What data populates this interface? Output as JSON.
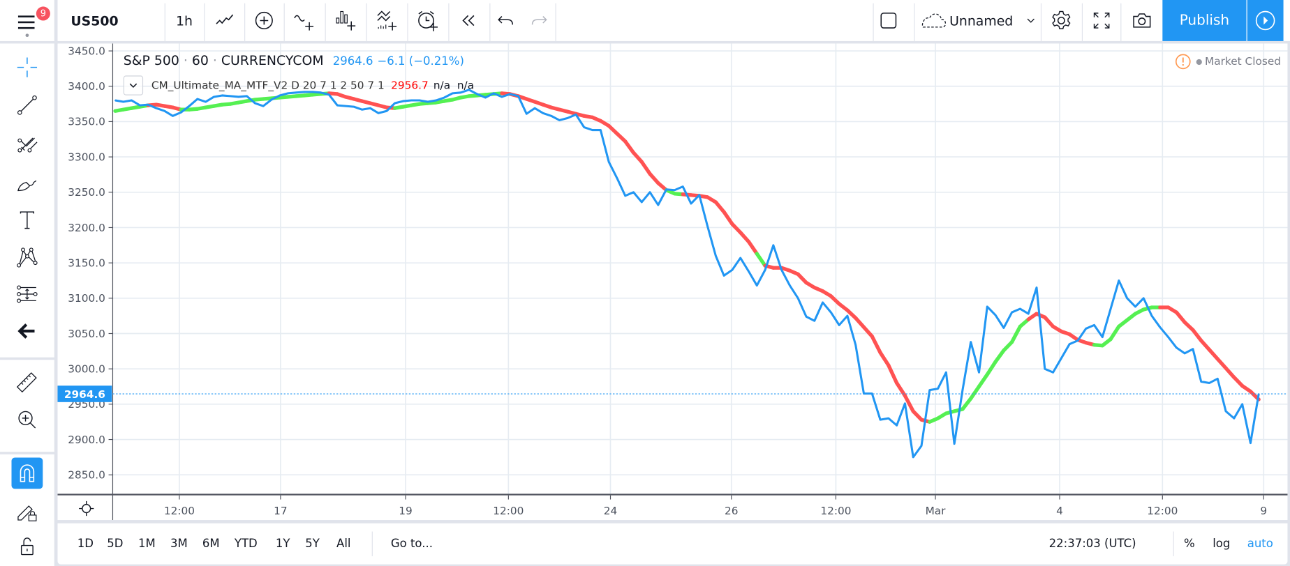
{
  "menu": {
    "badge_count": "9"
  },
  "toolbar": {
    "symbol": "US500",
    "interval": "1h",
    "icons": [
      "chart-style-line-icon",
      "compare-add-icon",
      "indicators-icon",
      "financials-icon",
      "templates-icon",
      "alert-icon",
      "replay-icon",
      "undo-icon",
      "redo-icon"
    ],
    "layout_name": "Unnamed",
    "publish_label": "Publish"
  },
  "sidebar": {
    "tools": [
      "crosshair-icon",
      "trend-line-icon",
      "pitchfork-icon",
      "brush-icon",
      "text-icon",
      "pattern-icon",
      "prediction-measure-icon",
      "back-arrow-icon",
      "ruler-icon",
      "zoom-in-icon",
      "magnet-icon",
      "lock-drawing-icon",
      "unlock-icon"
    ],
    "active": "magnet-icon"
  },
  "legend": {
    "symbol_name": "S&P 500",
    "interval": "60",
    "exchange": "CURRENCYCOM",
    "separator": "·",
    "last": "2964.6",
    "change": "−6.1 (−0.21%)",
    "indicator_name": "CM_Ultimate_MA_MTF_V2 D 20 7 1 2 50 7 1",
    "indicator_value": "2956.7",
    "indicator_na": "n/a  n/a"
  },
  "market_status": "Market Closed",
  "colors": {
    "price": "#2196f3",
    "ma_up": "#55f052",
    "ma_down": "#ff5252",
    "accent": "#2196f3",
    "indicator_value": "#ff0000"
  },
  "chart_data": {
    "type": "line",
    "y_ticks": [
      "3450.0",
      "3400.0",
      "3350.0",
      "3300.0",
      "3250.0",
      "3200.0",
      "3150.0",
      "3100.0",
      "3050.0",
      "3000.0",
      "2950.0",
      "2900.0",
      "2850.0"
    ],
    "ylim": [
      2820,
      3462
    ],
    "x_ticks": [
      "12:00",
      "17",
      "19",
      "12:00",
      "24",
      "26",
      "12:00",
      "Mar",
      "4",
      "12:00",
      "9"
    ],
    "current_price_label": "2964.6",
    "current_price": 2964.6,
    "series": [
      {
        "name": "S&P 500",
        "color": "#2196f3",
        "values": [
          3380,
          3378,
          3380,
          3373,
          3374,
          3369,
          3365,
          3358,
          3363,
          3372,
          3382,
          3378,
          3385,
          3387,
          3386,
          3385,
          3386,
          3376,
          3372,
          3381,
          3387,
          3390,
          3391,
          3392,
          3392,
          3391,
          3388,
          3373,
          3372,
          3371,
          3367,
          3369,
          3362,
          3365,
          3376,
          3379,
          3380,
          3380,
          3378,
          3380,
          3384,
          3390,
          3391,
          3395,
          3389,
          3384,
          3390,
          3385,
          3389,
          3386,
          3361,
          3369,
          3362,
          3358,
          3352,
          3355,
          3360,
          3342,
          3338,
          3338,
          3293,
          3270,
          3245,
          3250,
          3236,
          3250,
          3232,
          3254,
          3253,
          3258,
          3234,
          3246,
          3202,
          3160,
          3132,
          3140,
          3157,
          3138,
          3118,
          3140,
          3175,
          3140,
          3118,
          3100,
          3074,
          3068,
          3094,
          3080,
          3062,
          3075,
          3034,
          2965,
          2965,
          2928,
          2930,
          2920,
          2951,
          2875,
          2891,
          2970,
          2972,
          2995,
          2894,
          2970,
          3038,
          2995,
          3088,
          3076,
          3058,
          3080,
          3085,
          3078,
          3115,
          3000,
          2995,
          3015,
          3035,
          3040,
          3057,
          3062,
          3045,
          3085,
          3125,
          3100,
          3088,
          3100,
          3075,
          3059,
          3045,
          3030,
          3022,
          3028,
          2982,
          2980,
          2986,
          2940,
          2930,
          2950,
          2895,
          2964.6
        ]
      },
      {
        "name": "CM_Ultimate_MA_MTF_V2",
        "values": [
          3365,
          3367,
          3369,
          3371,
          3373,
          3374,
          3372,
          3370,
          3367,
          3367,
          3368,
          3370,
          3372,
          3374,
          3375,
          3377,
          3379,
          3381,
          3382,
          3383,
          3384,
          3385,
          3386,
          3387,
          3388,
          3389,
          3390,
          3389,
          3385,
          3382,
          3379,
          3376,
          3373,
          3370,
          3369,
          3371,
          3373,
          3375,
          3376,
          3377,
          3379,
          3381,
          3384,
          3386,
          3387,
          3388,
          3389,
          3390,
          3389,
          3386,
          3382,
          3378,
          3374,
          3370,
          3367,
          3364,
          3361,
          3358,
          3356,
          3351,
          3344,
          3333,
          3322,
          3306,
          3293,
          3276,
          3263,
          3253,
          3248,
          3247,
          3246,
          3245,
          3243,
          3236,
          3222,
          3205,
          3193,
          3180,
          3163,
          3146,
          3143,
          3143,
          3139,
          3134,
          3122,
          3115,
          3110,
          3103,
          3092,
          3083,
          3072,
          3059,
          3046,
          3023,
          3005,
          2980,
          2962,
          2940,
          2928,
          2925,
          2930,
          2937,
          2940,
          2943,
          2958,
          2975,
          2992,
          3010,
          3026,
          3038,
          3060,
          3070,
          3078,
          3073,
          3060,
          3053,
          3049,
          3041,
          3037,
          3034,
          3033,
          3042,
          3060,
          3069,
          3078,
          3084,
          3087,
          3087,
          3087,
          3080,
          3066,
          3055,
          3040,
          3027,
          3014,
          3001,
          2988,
          2976,
          2968,
          2956.7
        ],
        "trend": "ggggg rrrr gggggggggggggggggg rrrrrrrr ggggggggggggg rrrrrrrrrrrrrrrrrrrr gg rrrrrrrrr g rrrrrrrrrrrrrrrrrrrr gggggggggggg rrrrrrrr gggggggg rrrrrrrrrrr"
      }
    ]
  },
  "bottom_bar": {
    "ranges": [
      "1D",
      "5D",
      "1M",
      "3M",
      "6M",
      "YTD",
      "1Y",
      "5Y",
      "All"
    ],
    "goto": "Go to...",
    "clock": "22:37:03 (UTC)",
    "percent": "%",
    "log": "log",
    "auto": "auto"
  }
}
